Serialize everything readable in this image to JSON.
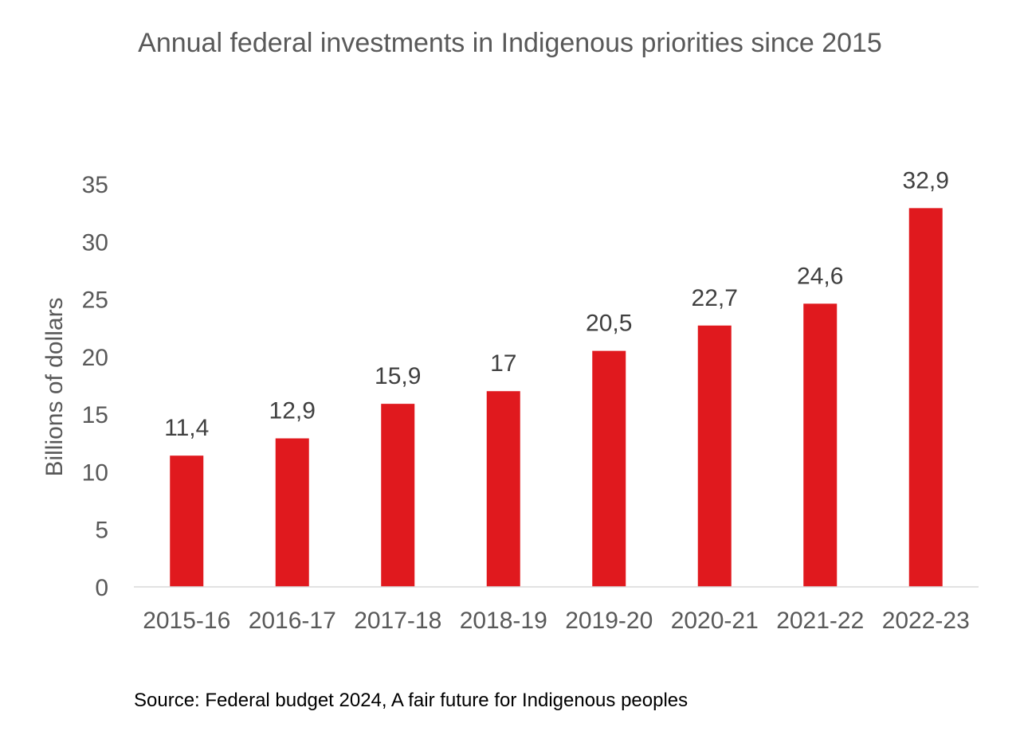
{
  "chart_data": {
    "type": "bar",
    "title": "Annual federal investments in Indigenous priorities since 2015",
    "xlabel": "",
    "ylabel": "Billions of dollars",
    "categories": [
      "2015-16",
      "2016-17",
      "2017-18",
      "2018-19",
      "2019-20",
      "2020-21",
      "2021-22",
      "2022-23"
    ],
    "values": [
      11.4,
      12.9,
      15.9,
      17,
      20.5,
      22.7,
      24.6,
      32.9
    ],
    "value_labels": [
      "11,4",
      "12,9",
      "15,9",
      "17",
      "20,5",
      "22,7",
      "24,6",
      "32,9"
    ],
    "y_ticks": [
      0,
      5,
      10,
      15,
      20,
      25,
      30,
      35
    ],
    "ylim": [
      0,
      35
    ],
    "grid": false,
    "legend": "none",
    "bar_color": "#E0191E"
  },
  "source": "Source: Federal budget 2024, A fair future for Indigenous peoples"
}
